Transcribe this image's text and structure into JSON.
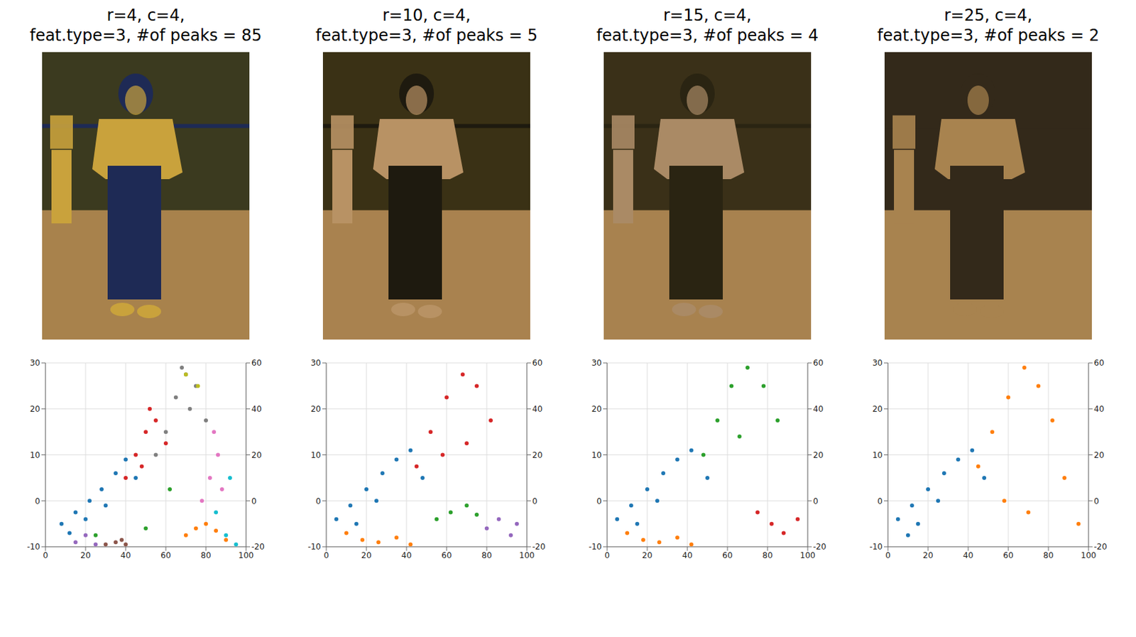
{
  "chart_data": [
    {
      "type": "image",
      "title": [
        "r=4, c=4,",
        "feat.type=3, #of peaks = 85"
      ],
      "colors": [
        "#3b3a1f",
        "#a8824c",
        "#c9a23c",
        "#1e2a55"
      ]
    },
    {
      "type": "scatter",
      "grid": true,
      "xlim": [
        0,
        100
      ],
      "xticks": [
        0,
        20,
        40,
        60,
        80,
        100
      ],
      "ylim": [
        -20,
        60
      ],
      "yticks": [
        -20,
        0,
        20,
        40,
        60
      ],
      "y2lim": [
        -10,
        30
      ],
      "y2ticks": [
        -10,
        0,
        10,
        20,
        30
      ],
      "tick_labels": true,
      "series": [
        {
          "color": "#1f77b4",
          "x": [
            8,
            15,
            22,
            28,
            35,
            40,
            45,
            30,
            20,
            12
          ],
          "values": [
            -10,
            -5,
            0,
            5,
            12,
            18,
            10,
            -2,
            -8,
            -14
          ]
        },
        {
          "color": "#d62728",
          "x": [
            40,
            45,
            50,
            55,
            60,
            48,
            52
          ],
          "values": [
            10,
            20,
            30,
            35,
            25,
            15,
            40
          ]
        },
        {
          "color": "#7f7f7f",
          "x": [
            55,
            60,
            65,
            70,
            75,
            80,
            68,
            72
          ],
          "values": [
            20,
            30,
            45,
            55,
            50,
            35,
            58,
            40
          ]
        },
        {
          "color": "#ff7f0e",
          "x": [
            70,
            75,
            80,
            85,
            90
          ],
          "values": [
            -15,
            -12,
            -10,
            -13,
            -17
          ]
        },
        {
          "color": "#e377c2",
          "x": [
            78,
            82,
            86,
            88,
            84
          ],
          "values": [
            0,
            10,
            20,
            5,
            30
          ]
        },
        {
          "color": "#9467bd",
          "x": [
            15,
            20,
            25
          ],
          "values": [
            -18,
            -15,
            -19
          ]
        },
        {
          "color": "#8c564b",
          "x": [
            30,
            35,
            40,
            38
          ],
          "values": [
            -19,
            -18,
            -19,
            -17
          ]
        },
        {
          "color": "#17becf",
          "x": [
            85,
            90,
            95,
            92
          ],
          "values": [
            -5,
            -15,
            -19,
            10
          ]
        },
        {
          "color": "#2ca02c",
          "x": [
            25,
            50,
            62
          ],
          "values": [
            -15,
            -12,
            5
          ]
        },
        {
          "color": "#bcbd22",
          "x": [
            70,
            76
          ],
          "values": [
            55,
            50
          ]
        }
      ]
    },
    {
      "type": "image",
      "title": [
        "r=10, c=4,",
        "feat.type=3, #of peaks = 5"
      ],
      "colors": [
        "#3a3115",
        "#a9824f",
        "#b89264",
        "#1e1a0f"
      ]
    },
    {
      "type": "scatter",
      "grid": true,
      "xlim": [
        0,
        100
      ],
      "xticks": [
        0,
        20,
        40,
        60,
        80,
        100
      ],
      "ylim": [
        -20,
        60
      ],
      "yticks": [
        -20,
        0,
        20,
        40,
        60
      ],
      "y2lim": [
        -10,
        30
      ],
      "y2ticks": [
        -10,
        0,
        10,
        20,
        30
      ],
      "tick_labels": true,
      "series": [
        {
          "color": "#1f77b4",
          "x": [
            5,
            12,
            20,
            28,
            35,
            42,
            48,
            25,
            15
          ],
          "values": [
            -8,
            -2,
            5,
            12,
            18,
            22,
            10,
            0,
            -10
          ]
        },
        {
          "color": "#d62728",
          "x": [
            45,
            52,
            60,
            68,
            75,
            82,
            70,
            58
          ],
          "values": [
            15,
            30,
            45,
            55,
            50,
            35,
            25,
            20
          ]
        },
        {
          "color": "#ff7f0e",
          "x": [
            10,
            18,
            26,
            35,
            42
          ],
          "values": [
            -14,
            -17,
            -18,
            -16,
            -19
          ]
        },
        {
          "color": "#2ca02c",
          "x": [
            55,
            62,
            70,
            75
          ],
          "values": [
            -8,
            -5,
            -2,
            -6
          ]
        },
        {
          "color": "#9467bd",
          "x": [
            80,
            86,
            92,
            95
          ],
          "values": [
            -12,
            -8,
            -15,
            -10
          ]
        }
      ]
    },
    {
      "type": "image",
      "title": [
        "r=15, c=4,",
        "feat.type=3, #of peaks = 4"
      ],
      "colors": [
        "#3a3018",
        "#a8824f",
        "#aa8a65",
        "#2a2412"
      ]
    },
    {
      "type": "scatter",
      "grid": true,
      "xlim": [
        0,
        100
      ],
      "xticks": [
        0,
        20,
        40,
        60,
        80,
        100
      ],
      "ylim": [
        -20,
        60
      ],
      "yticks": [
        -20,
        0,
        20,
        40,
        60
      ],
      "y2lim": [
        -10,
        30
      ],
      "y2ticks": [
        -10,
        0,
        10,
        20,
        30
      ],
      "tick_labels": true,
      "series": [
        {
          "color": "#1f77b4",
          "x": [
            5,
            12,
            20,
            28,
            35,
            42,
            50,
            25,
            15
          ],
          "values": [
            -8,
            -2,
            5,
            12,
            18,
            22,
            10,
            0,
            -10
          ]
        },
        {
          "color": "#2ca02c",
          "x": [
            48,
            55,
            62,
            70,
            78,
            85,
            66
          ],
          "values": [
            20,
            35,
            50,
            58,
            50,
            35,
            28
          ]
        },
        {
          "color": "#ff7f0e",
          "x": [
            10,
            18,
            26,
            35,
            42
          ],
          "values": [
            -14,
            -17,
            -18,
            -16,
            -19
          ]
        },
        {
          "color": "#d62728",
          "x": [
            75,
            82,
            88,
            95
          ],
          "values": [
            -5,
            -10,
            -14,
            -8
          ]
        }
      ]
    },
    {
      "type": "image",
      "title": [
        "r=25, c=4,",
        "feat.type=3, #of peaks = 2"
      ],
      "colors": [
        "#33291a",
        "#a8834f",
        "#a8834f",
        "#33291a"
      ]
    },
    {
      "type": "scatter",
      "grid": true,
      "xlim": [
        0,
        100
      ],
      "xticks": [
        0,
        20,
        40,
        60,
        80,
        100
      ],
      "ylim": [
        -20,
        60
      ],
      "yticks": [
        -20,
        0,
        20,
        40,
        60
      ],
      "y2lim": [
        -10,
        30
      ],
      "y2ticks": [
        -10,
        0,
        10,
        20,
        30
      ],
      "tick_labels": true,
      "series": [
        {
          "color": "#1f77b4",
          "x": [
            5,
            12,
            20,
            28,
            35,
            42,
            48,
            25,
            15,
            10
          ],
          "values": [
            -8,
            -2,
            5,
            12,
            18,
            22,
            10,
            0,
            -10,
            -15
          ]
        },
        {
          "color": "#ff7f0e",
          "x": [
            45,
            52,
            60,
            68,
            75,
            82,
            88,
            95,
            70,
            58
          ],
          "values": [
            15,
            30,
            45,
            58,
            50,
            35,
            10,
            -10,
            -5,
            0
          ]
        }
      ]
    }
  ]
}
